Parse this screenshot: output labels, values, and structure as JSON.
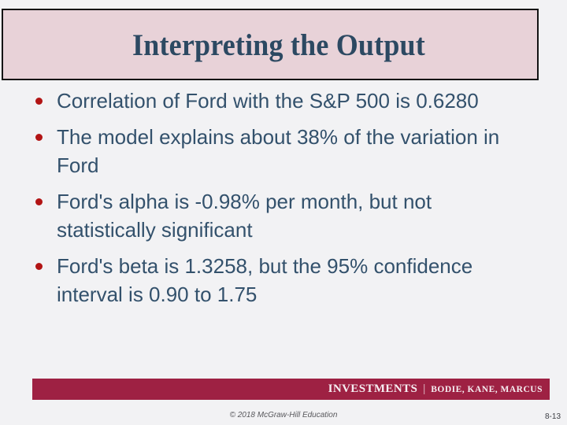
{
  "slide": {
    "title": "Interpreting the Output",
    "bullets": [
      "Correlation of Ford with the S&P 500 is 0.6280",
      "The model explains about 38% of the variation in Ford",
      "Ford's alpha is -0.98% per month, but not statistically significant",
      "Ford's beta is 1.3258, but the 95% confidence interval is 0.90 to 1.75"
    ],
    "footer": {
      "brand": "INVESTMENTS",
      "separator": "|",
      "authors": "BODIE, KANE, MARCUS"
    },
    "copyright": "© 2018 McGraw-Hill Education",
    "page_number": "8-13",
    "colors": {
      "background": "#f2f2f4",
      "header_fill": "#e8d2d8",
      "header_border": "#141414",
      "title_text": "#2c4962",
      "body_text": "#33516c",
      "bullet_marker": "#b21414",
      "footer_bar": "#9e2143",
      "footer_text": "#f6eef2",
      "copyright_text": "#58585c",
      "pagenum_text": "#3c3e44"
    }
  }
}
